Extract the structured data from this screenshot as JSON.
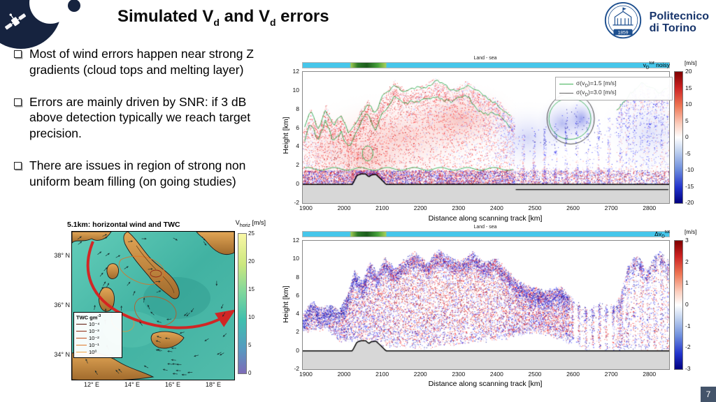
{
  "slide": {
    "page_number": "7"
  },
  "header": {
    "title_pre": "Simulated V",
    "title_sub1": "d",
    "title_mid": " and V",
    "title_sub2": "d",
    "title_post": " errors"
  },
  "logo": {
    "line1": "Politecnico",
    "line2": "di Torino",
    "year": "1859"
  },
  "bullets": [
    "Most of wind errors happen near strong Z gradients (cloud tops and melting layer)",
    "Errors are mainly driven by SNR: if 3 dB above detection typically we reach target precision.",
    "There are issues in region of strong non uniform beam filling (on going studies)"
  ],
  "map_figure": {
    "title": "5.1km: horizontal wind and TWC",
    "cbar_label_pre": "V",
    "cbar_label_sub": "horiz",
    "cbar_label_unit": " [m/s]",
    "cbar_ticks": [
      "25",
      "20",
      "15",
      "10",
      "5",
      "0"
    ],
    "y_ticks": [
      "38° N",
      "36° N",
      "34° N"
    ],
    "x_ticks": [
      "12° E",
      "14° E",
      "16° E",
      "18° E"
    ],
    "twc_legend": {
      "title_pre": "TWC gm",
      "title_sup": "-3",
      "items": [
        "10⁻⁴",
        "10⁻³",
        "10⁻²",
        "10⁻¹",
        "10⁰"
      ],
      "colors": [
        "#5a1408",
        "#8c2a10",
        "#c24a18",
        "#e07828",
        "#f0a848"
      ]
    }
  },
  "chart_data": [
    {
      "type": "heatmap",
      "id": "vd-tot-noisy",
      "strip_label": "Land - sea",
      "label": {
        "pre": "v",
        "sub": "D",
        "sup": "tot",
        "suffix": " noisy"
      },
      "cbar_unit": "[m/s]",
      "xlabel": "Distance along scanning track [km]",
      "ylabel": "Height [km]",
      "xlim": [
        1890,
        2850
      ],
      "ylim": [
        -2,
        12
      ],
      "x_ticks": [
        1900,
        2000,
        2100,
        2200,
        2300,
        2400,
        2500,
        2600,
        2700,
        2800
      ],
      "y_ticks": [
        -2,
        0,
        2,
        4,
        6,
        8,
        10,
        12
      ],
      "colorbar": {
        "min": -20,
        "max": 20,
        "ticks": [
          20,
          15,
          10,
          5,
          0,
          -5,
          -10,
          -15,
          -20
        ]
      },
      "legend": [
        {
          "pre": "σ(v",
          "sub": "D",
          "post": ")=1.5 [m/s]",
          "color": "#3db055"
        },
        {
          "pre": "σ(v",
          "sub": "D",
          "post": ")=3.0 [m/s]",
          "color": "#666666"
        }
      ],
      "description": "Simulated noisy Doppler velocity curtain along scanning track; red positive and blue negative velocities with green/gray precision contours and surface elevation line"
    },
    {
      "type": "heatmap",
      "id": "delta-vd-tot",
      "strip_label": "Land - sea",
      "label": {
        "pre": "Δv",
        "sub": "D",
        "sup": "tot",
        "suffix": ""
      },
      "cbar_unit": "[m/s]",
      "xlabel": "Distance along scanning track [km]",
      "ylabel": "Height [km]",
      "xlim": [
        1890,
        2850
      ],
      "ylim": [
        -2,
        12
      ],
      "x_ticks": [
        1900,
        2000,
        2100,
        2200,
        2300,
        2400,
        2500,
        2600,
        2700,
        2800
      ],
      "y_ticks": [
        -2,
        0,
        2,
        4,
        6,
        8,
        10,
        12
      ],
      "colorbar": {
        "min": -3,
        "max": 3,
        "ticks": [
          3,
          2,
          1,
          0,
          -1,
          -2,
          -3
        ]
      },
      "description": "Doppler velocity error (difference) curtain; speckled red/blue noise field with surface elevation line"
    }
  ]
}
